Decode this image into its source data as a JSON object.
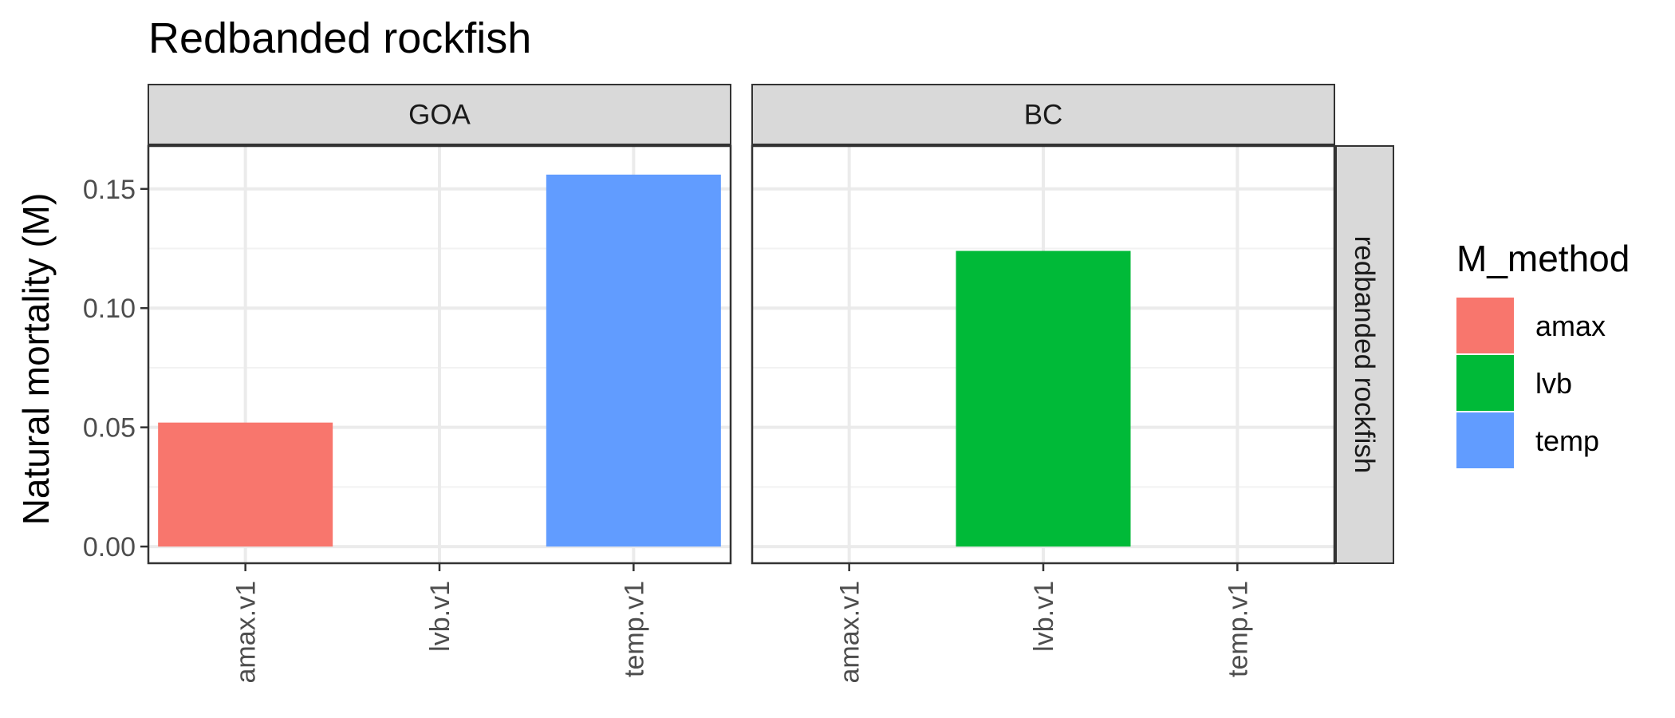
{
  "chart_data": {
    "type": "bar",
    "title": "Redbanded rockfish",
    "xlabel": "",
    "ylabel": "Natural mortality (M)",
    "ylim": [
      -0.007,
      0.168
    ],
    "y_ticks": [
      0.0,
      0.05,
      0.1,
      0.15
    ],
    "y_tick_labels": [
      "0.00",
      "0.05",
      "0.10",
      "0.15"
    ],
    "categories": [
      "amax.v1",
      "lvb.v1",
      "temp.v1"
    ],
    "facet_row_label": "redbanded rockfish",
    "grid": true,
    "legend": {
      "title": "M_method",
      "placement": "right",
      "entries": [
        {
          "name": "amax",
          "color": "#F8766D"
        },
        {
          "name": "lvb",
          "color": "#00BA38"
        },
        {
          "name": "temp",
          "color": "#619CFF"
        }
      ]
    },
    "panels": [
      {
        "label": "GOA",
        "bars": [
          {
            "category": "amax.v1",
            "method": "amax",
            "value": 0.052
          },
          {
            "category": "temp.v1",
            "method": "temp",
            "value": 0.156
          }
        ]
      },
      {
        "label": "BC",
        "bars": [
          {
            "category": "lvb.v1",
            "method": "lvb",
            "value": 0.124
          }
        ]
      }
    ]
  }
}
